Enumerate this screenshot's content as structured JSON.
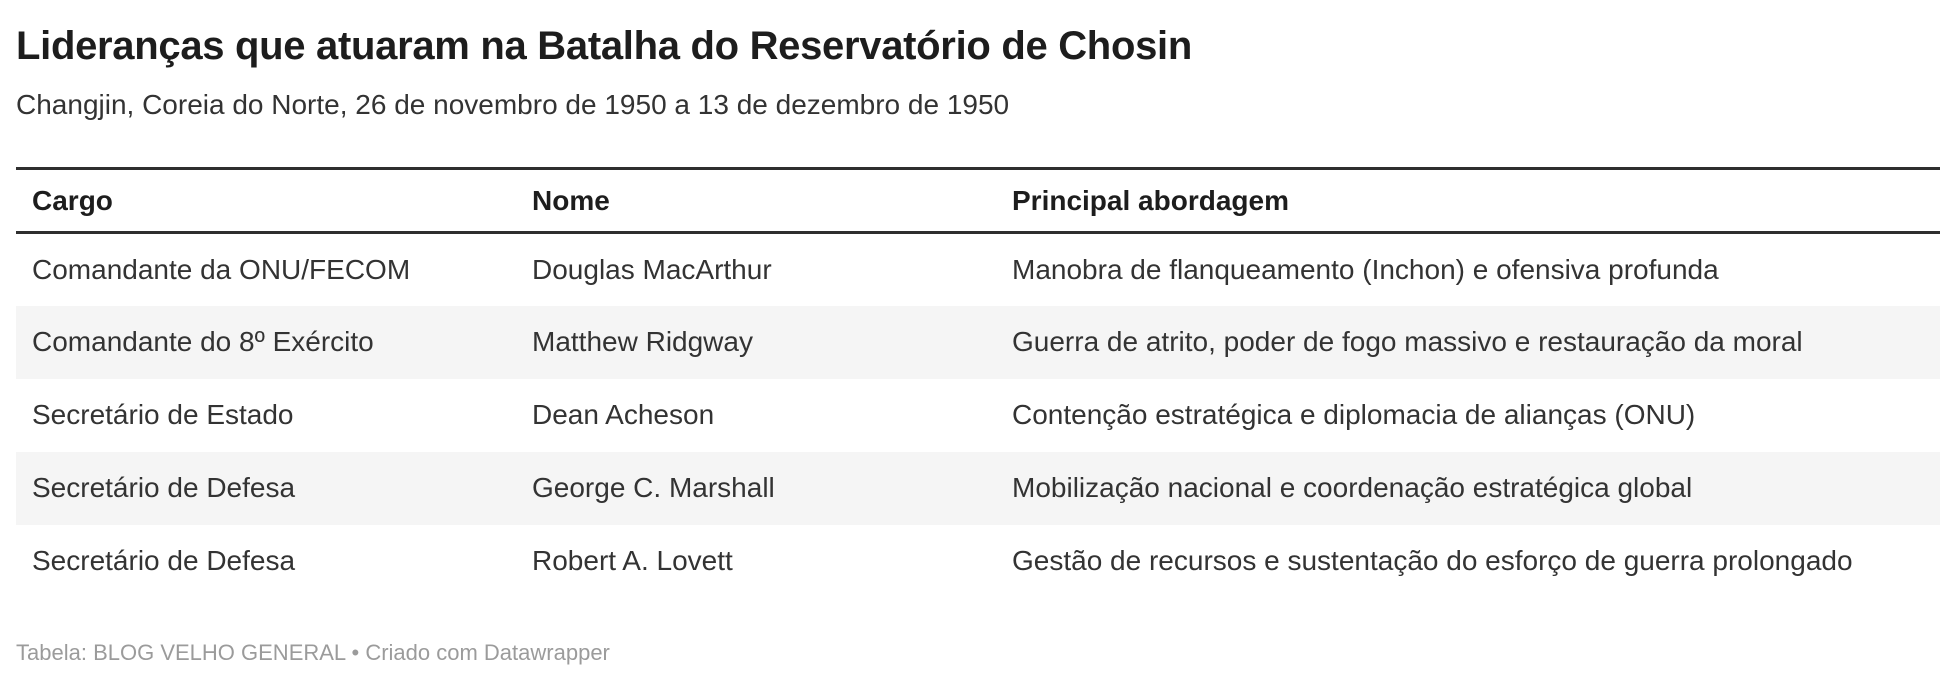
{
  "chart_data": {
    "type": "table",
    "title": "Lideranças que atuaram na Batalha do Reservatório de Chosin",
    "subtitle": "Changjin, Coreia do Norte, 26 de novembro de 1950 a 13 de dezembro de 1950",
    "columns": [
      "Cargo",
      "Nome",
      "Principal abordagem"
    ],
    "rows": [
      [
        "Comandante da ONU/FECOM",
        "Douglas MacArthur",
        "Manobra de flanqueamento (Inchon) e ofensiva profunda"
      ],
      [
        "Comandante do 8º Exército",
        "Matthew Ridgway",
        "Guerra de atrito, poder de fogo massivo e restauração da moral"
      ],
      [
        "Secretário de Estado",
        "Dean Acheson",
        "Contenção estratégica e diplomacia de alianças (ONU)"
      ],
      [
        "Secretário de Defesa",
        "George C. Marshall",
        "Mobilização nacional e coordenação estratégica global"
      ],
      [
        "Secretário de Defesa",
        "Robert A. Lovett",
        "Gestão de recursos e sustentação do esforço de guerra prolongado"
      ]
    ],
    "layout_hints": {
      "striped_rows": [
        2,
        4
      ],
      "grid": "horizontal-rules-header-only",
      "header_rule_color": "#2f2f2f",
      "stripe_color": "#f5f5f5"
    }
  },
  "footer": {
    "label": "Tabela:",
    "source": "BLOG VELHO GENERAL",
    "separator": "•",
    "credit": "Criado com",
    "tool": "Datawrapper"
  },
  "colors": {
    "background": "#ffffff",
    "heading_text": "#1d1d1d",
    "body_text": "#333333",
    "rule": "#2f2f2f",
    "stripe": "#f5f5f5",
    "footer_text": "#9b9b9b"
  }
}
